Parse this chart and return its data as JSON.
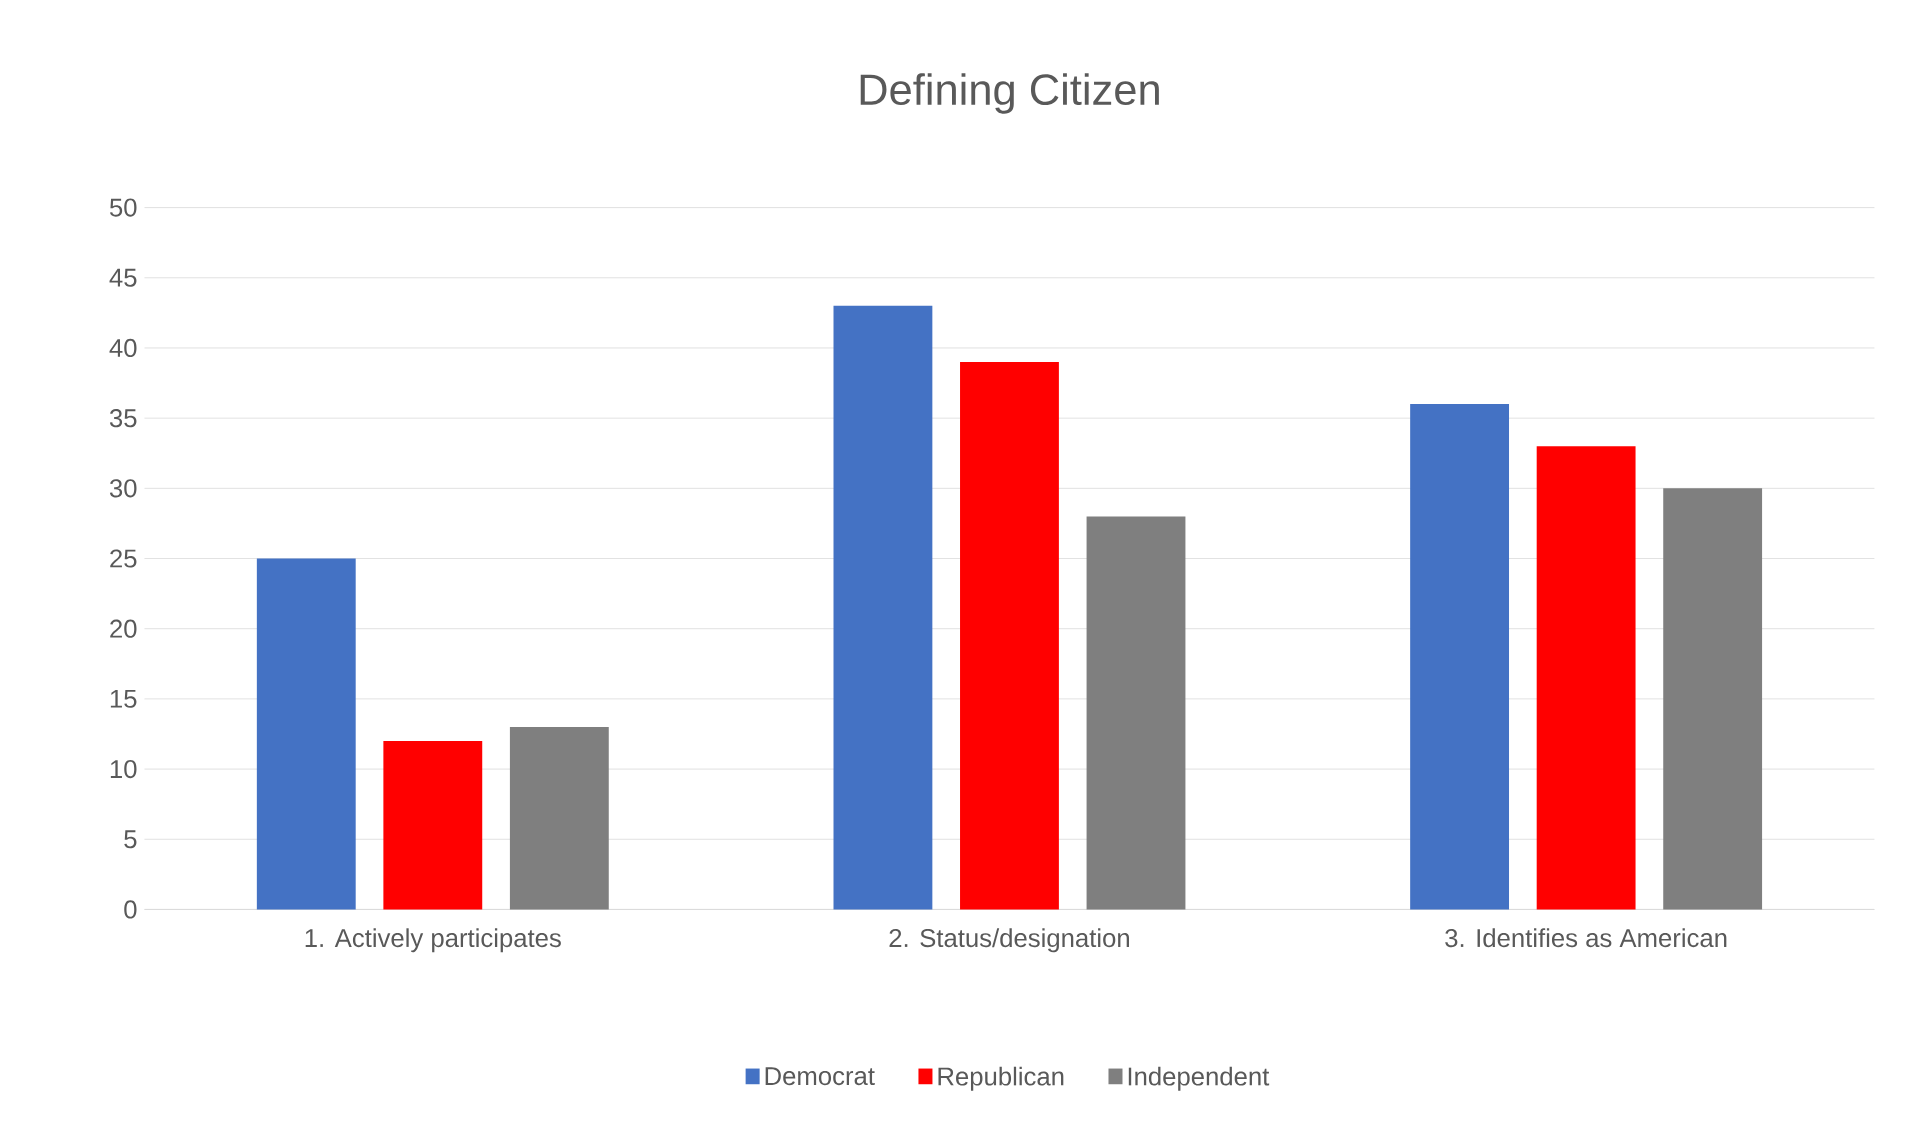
{
  "chart_data": {
    "type": "bar",
    "title": "Defining Citizen",
    "categories": [
      "1. Actively participates",
      "2. Status/designation",
      "3. Identifies as American"
    ],
    "series": [
      {
        "name": "Democrat",
        "color": "#4472c4",
        "values": [
          25,
          43,
          36
        ]
      },
      {
        "name": "Republican",
        "color": "#ff0000",
        "values": [
          12,
          39,
          33
        ]
      },
      {
        "name": "Independent",
        "color": "#7f7f7f",
        "values": [
          13,
          28,
          30
        ]
      }
    ],
    "ylim": [
      0,
      50
    ],
    "yticks": [
      0,
      5,
      10,
      15,
      20,
      25,
      30,
      35,
      40,
      45,
      50
    ],
    "grid": "y",
    "legend": "bottom"
  }
}
